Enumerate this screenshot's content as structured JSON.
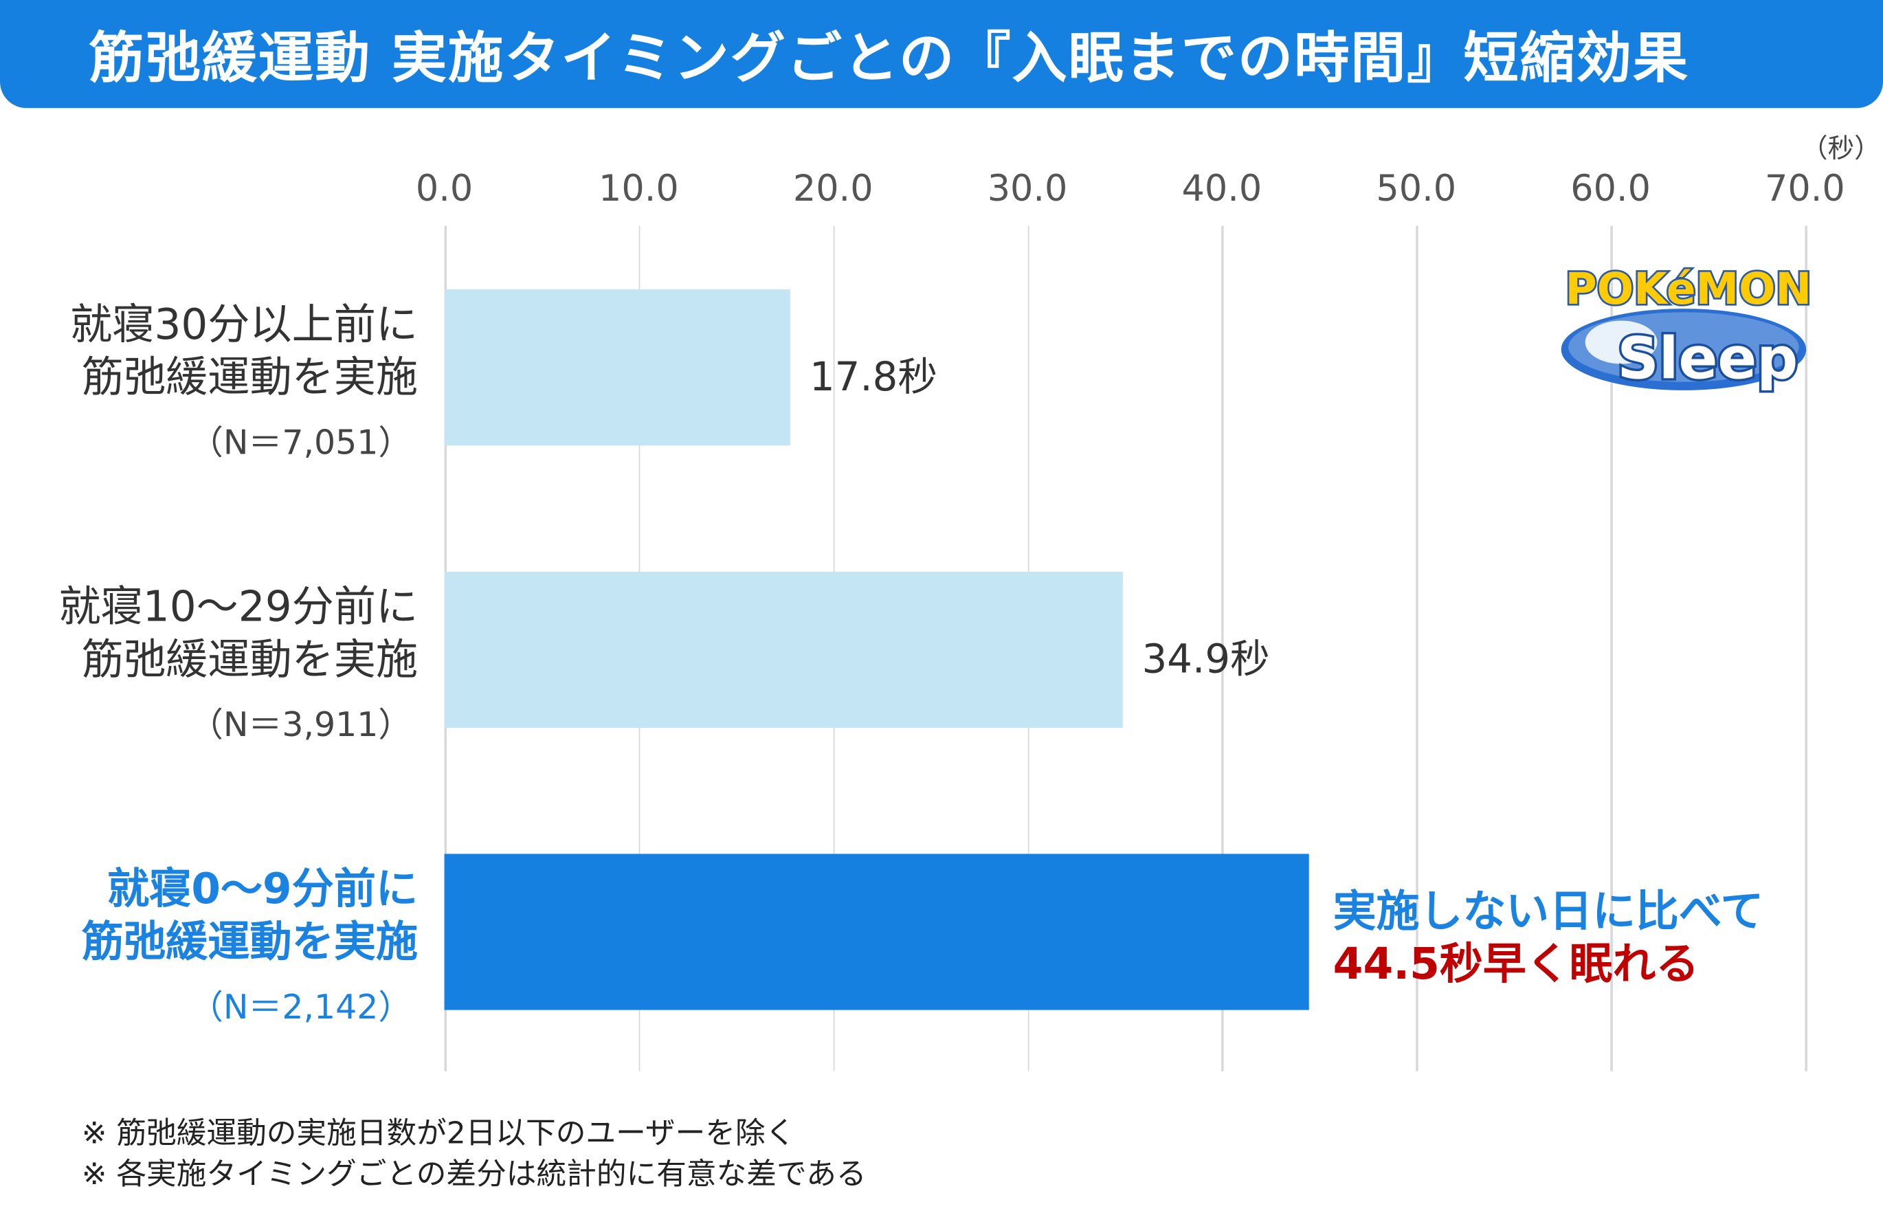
{
  "title": "筋弛緩運動 実施タイミングごとの『入眠までの時間』短縮効果",
  "chart_data": {
    "type": "bar",
    "orientation": "horizontal",
    "title": "筋弛緩運動 実施タイミングごとの『入眠までの時間』短縮効果",
    "unit_label": "（秒）",
    "xlim": [
      0,
      70
    ],
    "ticks": [
      "0.0",
      "10.0",
      "20.0",
      "30.0",
      "40.0",
      "50.0",
      "60.0",
      "70.0"
    ],
    "tick_values": [
      0,
      10,
      20,
      30,
      40,
      50,
      60,
      70
    ],
    "grid": true,
    "categories": [
      {
        "line1": "就寝30分以上前に",
        "line2": "筋弛緩運動を実施",
        "n": "（N＝7,051）",
        "value": 17.8,
        "label": "17.8秒",
        "color": "#c3e5f4",
        "highlight": false
      },
      {
        "line1": "就寝10～29分前に",
        "line2": "筋弛緩運動を実施",
        "n": "（N＝3,911）",
        "value": 34.9,
        "label": "34.9秒",
        "color": "#c3e5f4",
        "highlight": false
      },
      {
        "line1": "就寝0～9分前に",
        "line2": "筋弛緩運動を実施",
        "n": "（N＝2,142）",
        "value": 44.5,
        "label": "",
        "color": "#1580e0",
        "highlight": true
      }
    ],
    "annotation": {
      "line1": "実施しない日に比べて",
      "line2": "44.5秒早く眠れる",
      "color1": "#1a82e0",
      "color2": "#c00000"
    }
  },
  "notes": [
    "※ 筋弛緩運動の実施日数が2日以下のユーザーを除く",
    "※ 各実施タイミングごとの差分は統計的に有意な差である"
  ],
  "logo": {
    "text1": "Pokémon",
    "text2": "Sleep"
  }
}
